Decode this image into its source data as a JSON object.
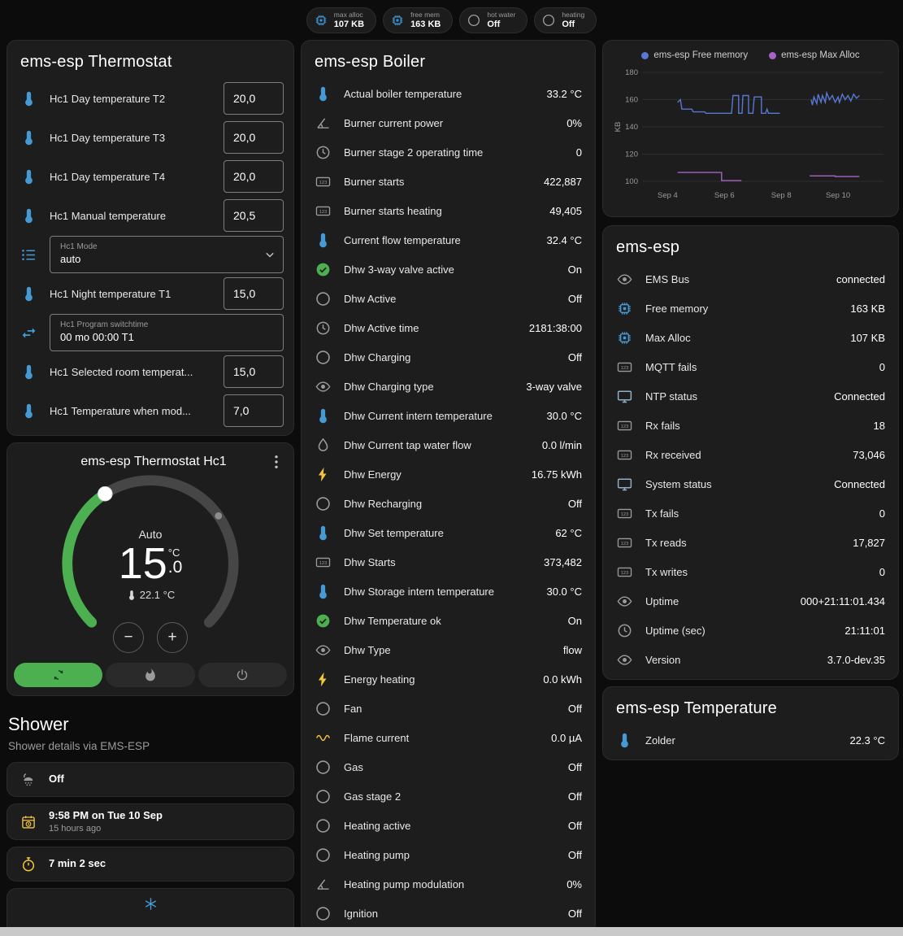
{
  "header_badges": [
    {
      "name": "max-alloc",
      "label": "max alloc",
      "value": "107 KB",
      "icon": "chip",
      "icon_color": "#3f94d6"
    },
    {
      "name": "free-mem",
      "label": "free mem",
      "value": "163 KB",
      "icon": "chip",
      "icon_color": "#3f94d6"
    },
    {
      "name": "hot-water",
      "label": "hot water",
      "value": "Off",
      "icon": "circle-outline",
      "icon_color": "#9b9b9b"
    },
    {
      "name": "heating",
      "label": "heating",
      "value": "Off",
      "icon": "circle-outline",
      "icon_color": "#9b9b9b"
    }
  ],
  "thermostat_card": {
    "title": "ems-esp Thermostat",
    "rows": [
      {
        "type": "number",
        "icon": "thermometer",
        "icon_color": "#459ad5",
        "label": "Hc1 Day temperature T2",
        "value": "20,0"
      },
      {
        "type": "number",
        "icon": "thermometer",
        "icon_color": "#459ad5",
        "label": "Hc1 Day temperature T3",
        "value": "20,0"
      },
      {
        "type": "number",
        "icon": "thermometer",
        "icon_color": "#459ad5",
        "label": "Hc1 Day temperature T4",
        "value": "20,0"
      },
      {
        "type": "number",
        "icon": "thermometer",
        "icon_color": "#459ad5",
        "label": "Hc1 Manual temperature",
        "value": "20,5"
      },
      {
        "type": "select",
        "icon": "list",
        "icon_color": "#459ad5",
        "label": "Hc1 Mode",
        "value": "auto"
      },
      {
        "type": "number",
        "icon": "thermometer",
        "icon_color": "#459ad5",
        "label": "Hc1 Night temperature T1",
        "value": "15,0"
      },
      {
        "type": "textfield",
        "icon": "swap",
        "icon_color": "#459ad5",
        "label": "Hc1 Program switchtime",
        "value": "00 mo 00:00 T1"
      },
      {
        "type": "number",
        "icon": "thermometer",
        "icon_color": "#459ad5",
        "label": "Hc1 Selected room temperat...",
        "value": "15,0"
      },
      {
        "type": "number",
        "icon": "thermometer",
        "icon_color": "#459ad5",
        "label": "Hc1 Temperature when mod...",
        "value": "7,0"
      }
    ]
  },
  "hc1_card": {
    "title": "ems-esp Thermostat Hc1",
    "mode": "Auto",
    "target_int": "15",
    "target_dec": ".0",
    "unit": "°C",
    "current": "22.1 °C",
    "decrease_label": "−",
    "increase_label": "+"
  },
  "shower": {
    "title": "Shower",
    "subtitle": "Shower details via EMS-ESP",
    "cards": [
      {
        "icon": "shower",
        "icon_color": "#9b9b9b",
        "primary": "Off",
        "secondary": ""
      },
      {
        "icon": "calendar-clock",
        "icon_color": "#f3c63f",
        "primary": "9:58 PM on Tue 10 Sep",
        "secondary": "15 hours ago"
      },
      {
        "icon": "timer",
        "icon_color": "#f3c63f",
        "primary": "7 min 2 sec",
        "secondary": ""
      }
    ]
  },
  "boiler_card": {
    "title": "ems-esp Boiler",
    "rows": [
      {
        "icon": "thermometer",
        "icon_color": "#459ad5",
        "label": "Actual boiler temperature",
        "value": "33.2 °C"
      },
      {
        "icon": "angle",
        "icon_color": "#9b9b9b",
        "label": "Burner current power",
        "value": "0%"
      },
      {
        "icon": "clock",
        "icon_color": "#9b9b9b",
        "label": "Burner stage 2 operating time",
        "value": "0"
      },
      {
        "icon": "counter",
        "icon_color": "#9b9b9b",
        "label": "Burner starts",
        "value": "422,887"
      },
      {
        "icon": "counter",
        "icon_color": "#9b9b9b",
        "label": "Burner starts heating",
        "value": "49,405"
      },
      {
        "icon": "thermometer",
        "icon_color": "#459ad5",
        "label": "Current flow temperature",
        "value": "32.4 °C"
      },
      {
        "icon": "check-circle",
        "icon_color": "#4caf50",
        "label": "Dhw 3-way valve active",
        "value": "On"
      },
      {
        "icon": "circle-outline",
        "icon_color": "#9b9b9b",
        "label": "Dhw Active",
        "value": "Off"
      },
      {
        "icon": "clock",
        "icon_color": "#9b9b9b",
        "label": "Dhw Active time",
        "value": "2181:38:00"
      },
      {
        "icon": "circle-outline",
        "icon_color": "#9b9b9b",
        "label": "Dhw Charging",
        "value": "Off"
      },
      {
        "icon": "eye",
        "icon_color": "#9b9b9b",
        "label": "Dhw Charging type",
        "value": "3-way valve"
      },
      {
        "icon": "thermometer",
        "icon_color": "#459ad5",
        "label": "Dhw Current intern temperature",
        "value": "30.0 °C"
      },
      {
        "icon": "water",
        "icon_color": "#9b9b9b",
        "label": "Dhw Current tap water flow",
        "value": "0.0 l/min"
      },
      {
        "icon": "bolt",
        "icon_color": "#f3c63f",
        "label": "Dhw Energy",
        "value": "16.75 kWh"
      },
      {
        "icon": "circle-outline",
        "icon_color": "#9b9b9b",
        "label": "Dhw Recharging",
        "value": "Off"
      },
      {
        "icon": "thermometer",
        "icon_color": "#459ad5",
        "label": "Dhw Set temperature",
        "value": "62 °C"
      },
      {
        "icon": "counter",
        "icon_color": "#9b9b9b",
        "label": "Dhw Starts",
        "value": "373,482"
      },
      {
        "icon": "thermometer",
        "icon_color": "#459ad5",
        "label": "Dhw Storage intern temperature",
        "value": "30.0 °C"
      },
      {
        "icon": "check-circle",
        "icon_color": "#4caf50",
        "label": "Dhw Temperature ok",
        "value": "On"
      },
      {
        "icon": "eye",
        "icon_color": "#9b9b9b",
        "label": "Dhw Type",
        "value": "flow"
      },
      {
        "icon": "bolt",
        "icon_color": "#f3c63f",
        "label": "Energy heating",
        "value": "0.0 kWh"
      },
      {
        "icon": "circle-outline",
        "icon_color": "#9b9b9b",
        "label": "Fan",
        "value": "Off"
      },
      {
        "icon": "current",
        "icon_color": "#f3c63f",
        "label": "Flame current",
        "value": "0.0 µA"
      },
      {
        "icon": "circle-outline",
        "icon_color": "#9b9b9b",
        "label": "Gas",
        "value": "Off"
      },
      {
        "icon": "circle-outline",
        "icon_color": "#9b9b9b",
        "label": "Gas stage 2",
        "value": "Off"
      },
      {
        "icon": "circle-outline",
        "icon_color": "#9b9b9b",
        "label": "Heating active",
        "value": "Off"
      },
      {
        "icon": "circle-outline",
        "icon_color": "#9b9b9b",
        "label": "Heating pump",
        "value": "Off"
      },
      {
        "icon": "angle",
        "icon_color": "#9b9b9b",
        "label": "Heating pump modulation",
        "value": "0%"
      },
      {
        "icon": "circle-outline",
        "icon_color": "#9b9b9b",
        "label": "Ignition",
        "value": "Off"
      }
    ]
  },
  "ems_card": {
    "title": "ems-esp",
    "rows": [
      {
        "icon": "eye",
        "icon_color": "#9b9b9b",
        "label": "EMS Bus",
        "value": "connected"
      },
      {
        "icon": "chip",
        "icon_color": "#459ad5",
        "label": "Free memory",
        "value": "163 KB"
      },
      {
        "icon": "chip",
        "icon_color": "#459ad5",
        "label": "Max Alloc",
        "value": "107 KB"
      },
      {
        "icon": "counter",
        "icon_color": "#9b9b9b",
        "label": "MQTT fails",
        "value": "0"
      },
      {
        "icon": "monitor",
        "icon_color": "#8fb0c5",
        "label": "NTP status",
        "value": "Connected"
      },
      {
        "icon": "counter",
        "icon_color": "#9b9b9b",
        "label": "Rx fails",
        "value": "18"
      },
      {
        "icon": "counter",
        "icon_color": "#9b9b9b",
        "label": "Rx received",
        "value": "73,046"
      },
      {
        "icon": "monitor",
        "icon_color": "#8fb0c5",
        "label": "System status",
        "value": "Connected"
      },
      {
        "icon": "counter",
        "icon_color": "#9b9b9b",
        "label": "Tx fails",
        "value": "0"
      },
      {
        "icon": "counter",
        "icon_color": "#9b9b9b",
        "label": "Tx reads",
        "value": "17,827"
      },
      {
        "icon": "counter",
        "icon_color": "#9b9b9b",
        "label": "Tx writes",
        "value": "0"
      },
      {
        "icon": "eye",
        "icon_color": "#9b9b9b",
        "label": "Uptime",
        "value": "000+21:11:01.434"
      },
      {
        "icon": "clock",
        "icon_color": "#9b9b9b",
        "label": "Uptime (sec)",
        "value": "21:11:01"
      },
      {
        "icon": "eye",
        "icon_color": "#9b9b9b",
        "label": "Version",
        "value": "3.7.0-dev.35"
      }
    ]
  },
  "temp_card": {
    "title": "ems-esp Temperature",
    "rows": [
      {
        "icon": "thermometer",
        "icon_color": "#459ad5",
        "label": "Zolder",
        "value": "22.3 °C"
      }
    ]
  },
  "chart_data": {
    "type": "line",
    "title": "",
    "ylabel": "KB",
    "xlim": [
      3.1,
      11.6
    ],
    "ylim": [
      97,
      183
    ],
    "yticks": [
      100,
      120,
      140,
      160,
      180
    ],
    "xticks": [
      {
        "v": 4,
        "label": "Sep 4"
      },
      {
        "v": 6,
        "label": "Sep 6"
      },
      {
        "v": 8,
        "label": "Sep 8"
      },
      {
        "v": 10,
        "label": "Sep 10"
      }
    ],
    "grid": true,
    "legend_position": "top",
    "series": [
      {
        "name": "ems-esp Free memory",
        "color": "#5878d2",
        "segments": [
          [
            [
              4.35,
              158
            ],
            [
              4.45,
              160
            ],
            [
              4.5,
              153
            ],
            [
              4.85,
              153
            ],
            [
              4.9,
              151
            ],
            [
              5.3,
              151
            ],
            [
              5.35,
              150
            ],
            [
              6.25,
              150
            ],
            [
              6.3,
              163
            ],
            [
              6.5,
              163
            ],
            [
              6.5,
              150
            ],
            [
              6.62,
              150
            ],
            [
              6.65,
              163
            ],
            [
              6.85,
              163
            ],
            [
              6.85,
              150
            ],
            [
              7.0,
              150
            ],
            [
              7.05,
              162
            ],
            [
              7.3,
              162
            ],
            [
              7.3,
              150
            ],
            [
              7.45,
              150
            ],
            [
              7.5,
              153
            ],
            [
              7.55,
              150
            ],
            [
              7.95,
              150
            ]
          ],
          [
            [
              9.05,
              160
            ],
            [
              9.1,
              156
            ],
            [
              9.15,
              162
            ],
            [
              9.25,
              157
            ],
            [
              9.3,
              164
            ],
            [
              9.4,
              158
            ],
            [
              9.45,
              163
            ],
            [
              9.55,
              158
            ],
            [
              9.6,
              165
            ],
            [
              9.7,
              160
            ],
            [
              9.8,
              163
            ],
            [
              9.9,
              158
            ],
            [
              10.0,
              162
            ],
            [
              10.05,
              158
            ],
            [
              10.15,
              164
            ],
            [
              10.25,
              160
            ],
            [
              10.35,
              163
            ],
            [
              10.45,
              159
            ],
            [
              10.55,
              164
            ],
            [
              10.65,
              161
            ],
            [
              10.75,
              163
            ]
          ]
        ]
      },
      {
        "name": "ems-esp Max Alloc",
        "color": "#a862c8",
        "segments": [
          [
            [
              4.35,
              106.5
            ],
            [
              5.9,
              106.5
            ],
            [
              5.9,
              100.5
            ],
            [
              6.6,
              100.5
            ]
          ],
          [
            [
              9.0,
              104
            ],
            [
              9.9,
              104
            ],
            [
              9.9,
              103.5
            ],
            [
              10.75,
              103.5
            ]
          ]
        ]
      }
    ]
  }
}
